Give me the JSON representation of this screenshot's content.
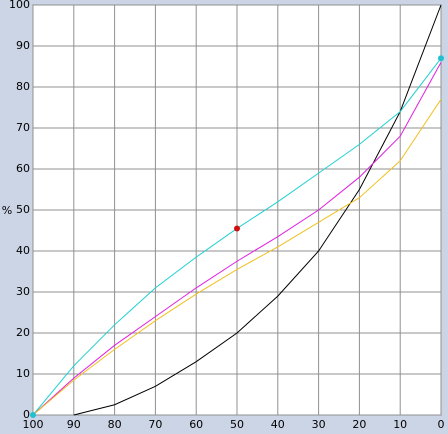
{
  "chart_data": {
    "type": "line",
    "y_label": "%",
    "x": [
      100,
      90,
      80,
      70,
      60,
      50,
      40,
      30,
      20,
      10,
      0
    ],
    "xlim": [
      100,
      0
    ],
    "ylim": [
      0,
      100
    ],
    "xticks": [
      100,
      90,
      80,
      70,
      60,
      50,
      40,
      30,
      20,
      10,
      0
    ],
    "yticks": [
      0,
      10,
      20,
      30,
      40,
      50,
      60,
      70,
      80,
      90,
      100
    ],
    "grid": true,
    "series": [
      {
        "color": "#000000",
        "values": [
          null,
          0,
          2.5,
          7,
          13,
          20,
          29,
          40,
          55,
          74,
          100
        ]
      },
      {
        "color": "#20d0d0",
        "values": [
          0,
          12,
          22,
          31,
          38.5,
          45.5,
          52,
          59,
          66,
          74,
          87
        ]
      },
      {
        "color": "#e020e0",
        "values": [
          0,
          9,
          17,
          24,
          31,
          37.5,
          43.5,
          50,
          58,
          68,
          86
        ]
      },
      {
        "color": "#f0c020",
        "values": [
          0,
          8.5,
          16,
          23,
          29.5,
          35.5,
          41,
          47,
          53,
          62,
          77
        ]
      }
    ],
    "markers": [
      {
        "x": 50,
        "y": 45.5,
        "color": "#d01010"
      },
      {
        "x": 100,
        "y": 0,
        "color": "#20c0d0"
      },
      {
        "x": 0,
        "y": 87,
        "color": "#20c0d0"
      }
    ]
  }
}
